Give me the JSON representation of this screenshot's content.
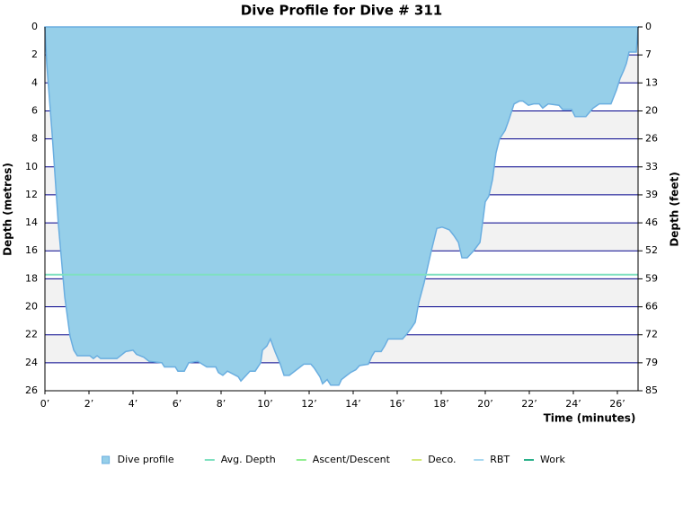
{
  "chart_data": {
    "type": "area",
    "title": "Dive Profile for Dive # 311",
    "xlabel": "Time (minutes)",
    "ylabel": "Depth (metres)",
    "y2label": "Depth (feet)",
    "y_inverted": true,
    "grid": true,
    "grid_color": "#00008b",
    "band_color": "#f2f2f2",
    "xlim": [
      0,
      26.94
    ],
    "xticks": [
      {
        "value": 0,
        "label": "0’"
      },
      {
        "value": 2,
        "label": "2’"
      },
      {
        "value": 4,
        "label": "4’"
      },
      {
        "value": 6,
        "label": "6’"
      },
      {
        "value": 8,
        "label": "8’"
      },
      {
        "value": 10,
        "label": "10’"
      },
      {
        "value": 12,
        "label": "12’"
      },
      {
        "value": 14,
        "label": "14’"
      },
      {
        "value": 16,
        "label": "16’"
      },
      {
        "value": 18,
        "label": "18’"
      },
      {
        "value": 20,
        "label": "20’"
      },
      {
        "value": 22,
        "label": "22’"
      },
      {
        "value": 24,
        "label": "24’"
      },
      {
        "value": 26,
        "label": "26’"
      }
    ],
    "ylim": [
      0,
      26
    ],
    "yticks": [
      0,
      2,
      4,
      6,
      8,
      10,
      12,
      14,
      16,
      18,
      20,
      22,
      24,
      26
    ],
    "y2lim": [
      0,
      85.3
    ],
    "y2ticks": [
      0,
      {
        "value": 6.56,
        "label": "7"
      },
      {
        "value": 13.12,
        "label": "13"
      },
      {
        "value": 19.69,
        "label": "20"
      },
      {
        "value": 26.25,
        "label": "26"
      },
      {
        "value": 32.81,
        "label": "33"
      },
      {
        "value": 39.37,
        "label": "39"
      },
      {
        "value": 45.93,
        "label": "46"
      },
      {
        "value": 52.49,
        "label": "52"
      },
      {
        "value": 59.06,
        "label": "59"
      },
      {
        "value": 65.62,
        "label": "66"
      },
      {
        "value": 72.18,
        "label": "72"
      },
      {
        "value": 78.74,
        "label": "79"
      },
      {
        "value": 85.3,
        "label": "85"
      }
    ],
    "x": [
      0,
      0.08,
      0.33,
      0.61,
      0.9,
      1.14,
      1.31,
      1.47,
      2.04,
      2.2,
      2.37,
      2.53,
      3.27,
      3.67,
      4.0,
      4.16,
      4.49,
      4.73,
      5.31,
      5.43,
      5.92,
      6.04,
      6.33,
      6.53,
      6.94,
      7.35,
      7.76,
      7.88,
      8.08,
      8.29,
      8.78,
      8.9,
      9.14,
      9.31,
      9.55,
      9.8,
      9.88,
      10.08,
      10.24,
      10.45,
      10.69,
      10.86,
      11.1,
      11.43,
      11.76,
      12.08,
      12.24,
      12.49,
      12.61,
      12.82,
      12.98,
      13.35,
      13.47,
      13.71,
      13.88,
      14.12,
      14.29,
      14.69,
      14.86,
      14.98,
      15.27,
      15.43,
      15.59,
      16.24,
      16.41,
      16.65,
      16.82,
      16.98,
      17.22,
      17.55,
      17.8,
      18.04,
      18.37,
      18.57,
      18.78,
      18.94,
      19.18,
      19.47,
      19.76,
      19.92,
      20.0,
      20.16,
      20.33,
      20.49,
      20.65,
      20.9,
      21.06,
      21.31,
      21.55,
      21.71,
      21.96,
      22.2,
      22.45,
      22.61,
      22.86,
      23.35,
      23.51,
      23.92,
      24.08,
      24.57,
      24.9,
      25.18,
      25.71,
      25.96,
      26.12,
      26.29,
      26.41,
      26.53,
      26.86,
      26.94
    ],
    "series": [
      {
        "name": "Dive profile",
        "color": "#96cfe9",
        "stroke": "#6aaee0",
        "values": [
          0,
          2.6,
          7.7,
          14.1,
          19.3,
          22.1,
          23.1,
          23.5,
          23.5,
          23.7,
          23.5,
          23.7,
          23.7,
          23.2,
          23.1,
          23.4,
          23.6,
          23.9,
          24.0,
          24.3,
          24.3,
          24.6,
          24.6,
          24.0,
          23.9,
          24.3,
          24.3,
          24.7,
          24.9,
          24.6,
          25.0,
          25.3,
          24.9,
          24.6,
          24.6,
          24.0,
          23.1,
          22.8,
          22.3,
          23.2,
          24.1,
          24.9,
          24.9,
          24.5,
          24.1,
          24.1,
          24.4,
          25.0,
          25.5,
          25.2,
          25.6,
          25.6,
          25.2,
          24.9,
          24.7,
          24.5,
          24.2,
          24.1,
          23.5,
          23.2,
          23.2,
          22.8,
          22.3,
          22.3,
          22.0,
          21.5,
          21.1,
          19.7,
          18.3,
          16.0,
          14.4,
          14.3,
          14.5,
          14.9,
          15.4,
          16.5,
          16.5,
          16.0,
          15.4,
          13.5,
          12.5,
          12.1,
          10.9,
          9.0,
          8.0,
          7.4,
          6.7,
          5.5,
          5.3,
          5.3,
          5.6,
          5.5,
          5.5,
          5.8,
          5.5,
          5.6,
          5.9,
          5.9,
          6.4,
          6.4,
          5.8,
          5.5,
          5.5,
          4.5,
          3.7,
          3.1,
          2.6,
          1.8,
          1.8,
          0
        ]
      },
      {
        "name": "Avg. Depth",
        "color": "#7fe0c0",
        "value": 17.7
      },
      {
        "name": "Ascent/Descent",
        "color": "#90ee90"
      },
      {
        "name": "Deco.",
        "color": "#d4e87a"
      },
      {
        "name": "RBT",
        "color": "#a8d8f0"
      },
      {
        "name": "Work",
        "color": "#2ab08a"
      }
    ]
  }
}
